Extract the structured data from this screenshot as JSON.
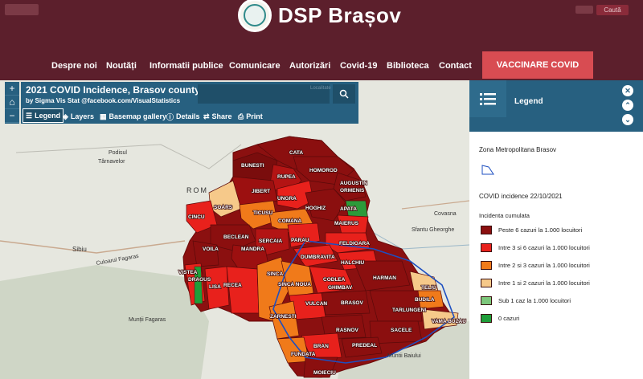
{
  "site": {
    "title": "DSP Brașov",
    "top_right": "Caută"
  },
  "nav": {
    "items": [
      "Despre noi",
      "Noutăți",
      "Informatii publice",
      "Comunicare",
      "Autorizări",
      "Covid-19",
      "Biblioteca",
      "Contact"
    ],
    "vaccine_button": "VACCINARE COVID"
  },
  "app": {
    "title": "2021 COVID Incidence, Brasov county",
    "subtitle": "by Sigma Vis Stat @facebook.com/VisualStatistics",
    "search_placeholder": "Localitate"
  },
  "toolbar": {
    "legend": "Legend",
    "layers": "Layers",
    "basemap": "Basemap gallery",
    "details": "Details",
    "share": "Share",
    "print": "Print"
  },
  "zoom": {
    "in": "+",
    "home": "⌂",
    "out": "−"
  },
  "legend": {
    "title": "Legend",
    "layer1": "Zona Metropolitana Brasov",
    "layer2": "COVID incidence 22/10/2021",
    "field": "Incidenta cumulata",
    "classes": [
      {
        "label": "Peste 6 cazuri la 1.000 locuitori",
        "color": "#8b0f0f"
      },
      {
        "label": "Intre 3 si 6 cazuri la 1.000 locuitori",
        "color": "#e8211c"
      },
      {
        "label": "Intre 2 si 3 cazuri la 1.000 locuitori",
        "color": "#f07a1a"
      },
      {
        "label": "Intre 1 si 2 cazuri la 1.000 locuitori",
        "color": "#f6c98a"
      },
      {
        "label": "Sub 1 caz la 1.000 locuitori",
        "color": "#7cc77b"
      },
      {
        "label": "0 cazuri",
        "color": "#1f9e3a"
      }
    ]
  },
  "map": {
    "places": [
      "Podisul",
      "Târnavelor",
      "ROM",
      "Sibiu",
      "Culoarul Fagaras",
      "Munții Fagaras",
      "Covasna",
      "Sfantu Gheorghe",
      "Muntii Baiului"
    ],
    "communes": [
      "CATA",
      "BUNESTI",
      "RUPEA",
      "HOMOROD",
      "JIBERT",
      "UNGRA",
      "AUGUSTIN",
      "ORMENIS",
      "SOARS",
      "TICUSU",
      "HOGHIZ",
      "APATA",
      "CINCU",
      "COMANA",
      "MAIERUS",
      "BECLEAN",
      "SERCAIA",
      "PARAU",
      "FELDIOARA",
      "VOILA",
      "MANDRA",
      "DUMBRAVITA",
      "HALCHIU",
      "VISTEA",
      "DRAGUS",
      "LISA",
      "RECEA",
      "SINCA",
      "SINCA NOUA",
      "CODLEA",
      "HARMAN",
      "TELIU",
      "GHIMBAV",
      "BRASOV",
      "VULCAN",
      "BUDILA",
      "ZARNESTI",
      "TARLUNGENI",
      "RASNOV",
      "SACELE",
      "VAMA BUZAU",
      "PREDEAL",
      "BRAN",
      "FUNDATA",
      "MOIECIU"
    ]
  }
}
